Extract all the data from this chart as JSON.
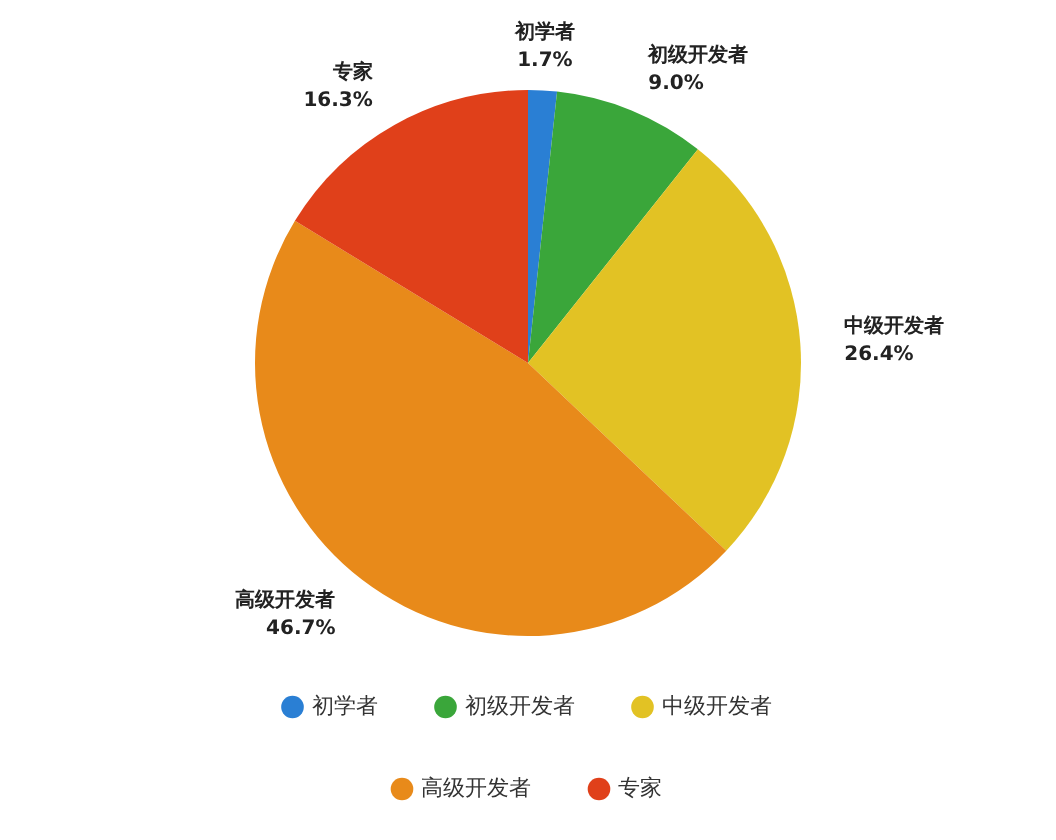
{
  "chart_data": {
    "type": "pie",
    "categories": [
      "初学者",
      "初级开发者",
      "中级开发者",
      "高级开发者",
      "专家"
    ],
    "values": [
      1.7,
      9.0,
      26.4,
      46.7,
      16.3
    ],
    "colors": [
      "#2a7fd4",
      "#3aa63a",
      "#e2c224",
      "#e88a1a",
      "#e0401a"
    ],
    "value_labels": [
      "1.7%",
      "9.0%",
      "26.4%",
      "46.7%",
      "16.3%"
    ],
    "legend": "bottom"
  }
}
